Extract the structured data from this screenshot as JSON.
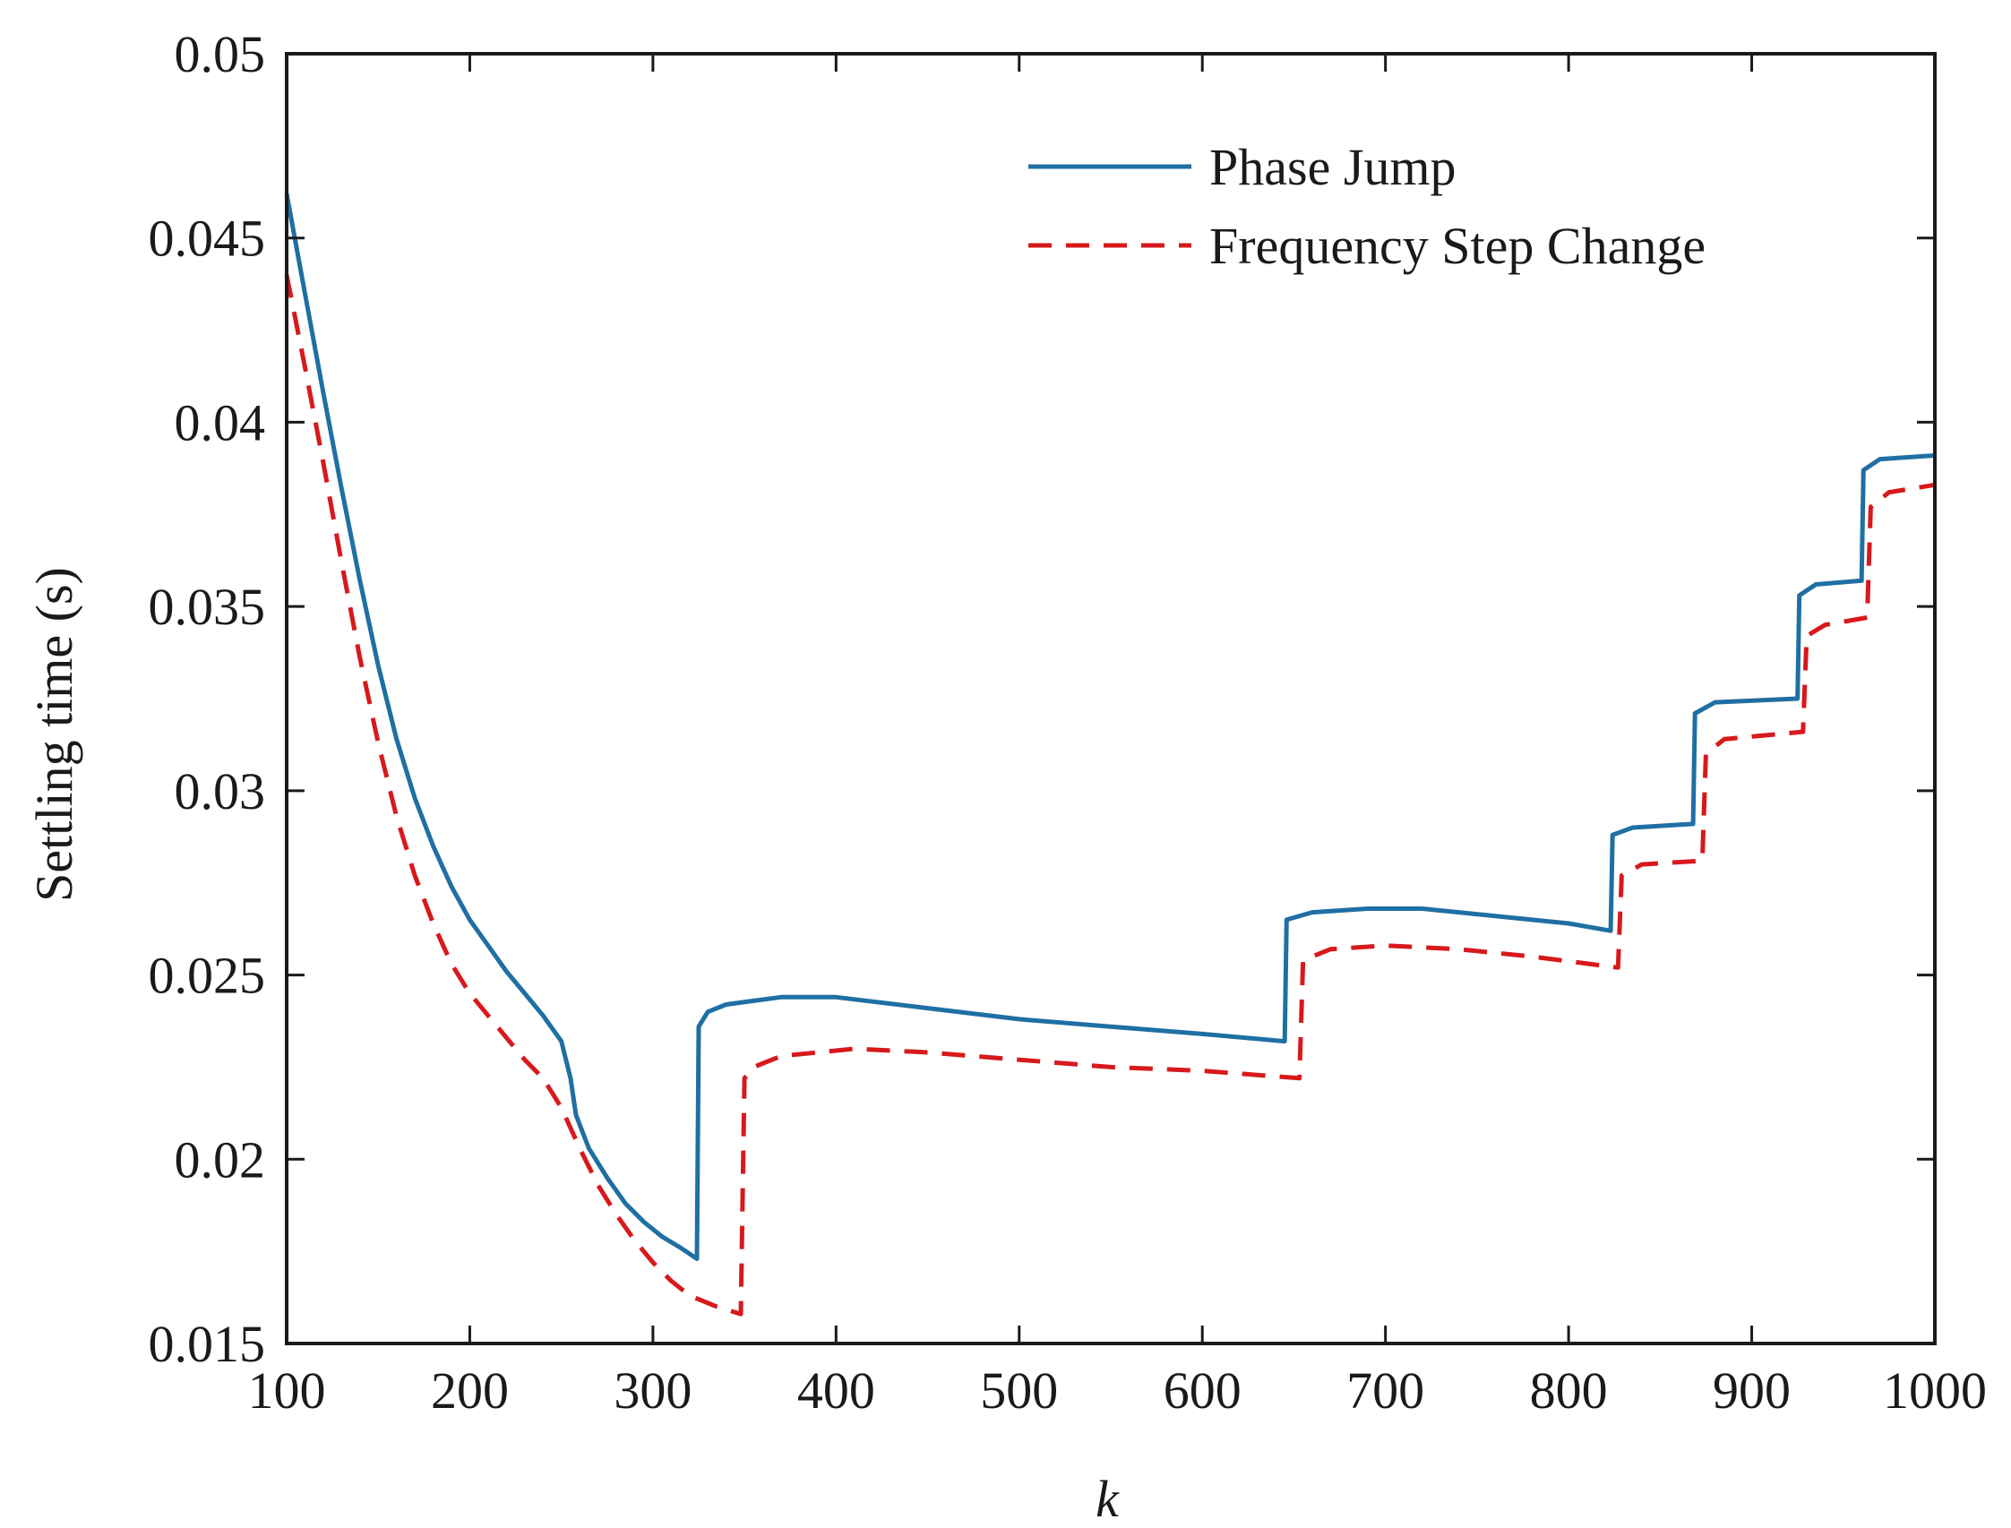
{
  "chart_data": {
    "type": "line",
    "title": "",
    "xlabel": "k",
    "ylabel": "Settling time (s)",
    "xlim": [
      100,
      1000
    ],
    "ylim": [
      0.015,
      0.05
    ],
    "x_ticks": [
      100,
      200,
      300,
      400,
      500,
      600,
      700,
      800,
      900,
      1000
    ],
    "x_tick_labels": [
      "100",
      "200",
      "300",
      "400",
      "500",
      "600",
      "700",
      "800",
      "900",
      "1000"
    ],
    "y_ticks": [
      0.015,
      0.02,
      0.025,
      0.03,
      0.035,
      0.04,
      0.045,
      0.05
    ],
    "y_tick_labels": [
      "0.015",
      "0.02",
      "0.025",
      "0.03",
      "0.035",
      "0.04",
      "0.045",
      "0.05"
    ],
    "grid": false,
    "legend": {
      "position": "top-right"
    },
    "series": [
      {
        "name": "Phase Jump",
        "color": "#1f6fa3",
        "style": "solid",
        "points": [
          [
            100,
            0.0462
          ],
          [
            110,
            0.0435
          ],
          [
            120,
            0.0408
          ],
          [
            130,
            0.0382
          ],
          [
            140,
            0.0357
          ],
          [
            150,
            0.0334
          ],
          [
            160,
            0.0314
          ],
          [
            170,
            0.0298
          ],
          [
            180,
            0.0285
          ],
          [
            190,
            0.0274
          ],
          [
            200,
            0.0265
          ],
          [
            210,
            0.0258
          ],
          [
            220,
            0.0251
          ],
          [
            230,
            0.0245
          ],
          [
            240,
            0.0239
          ],
          [
            250,
            0.0232
          ],
          [
            255,
            0.0222
          ],
          [
            258,
            0.0212
          ],
          [
            265,
            0.0203
          ],
          [
            275,
            0.0195
          ],
          [
            285,
            0.0188
          ],
          [
            295,
            0.0183
          ],
          [
            305,
            0.0179
          ],
          [
            315,
            0.0176
          ],
          [
            324,
            0.0173
          ],
          [
            325,
            0.0236
          ],
          [
            330,
            0.024
          ],
          [
            340,
            0.0242
          ],
          [
            355,
            0.0243
          ],
          [
            370,
            0.0244
          ],
          [
            385,
            0.0244
          ],
          [
            400,
            0.0244
          ],
          [
            450,
            0.0241
          ],
          [
            500,
            0.0238
          ],
          [
            550,
            0.0236
          ],
          [
            600,
            0.0234
          ],
          [
            645,
            0.0232
          ],
          [
            646,
            0.0265
          ],
          [
            660,
            0.0267
          ],
          [
            690,
            0.0268
          ],
          [
            720,
            0.0268
          ],
          [
            760,
            0.0266
          ],
          [
            800,
            0.0264
          ],
          [
            823,
            0.0262
          ],
          [
            824,
            0.0288
          ],
          [
            835,
            0.029
          ],
          [
            868,
            0.0291
          ],
          [
            869,
            0.0321
          ],
          [
            880,
            0.0324
          ],
          [
            925,
            0.0325
          ],
          [
            926,
            0.0353
          ],
          [
            935,
            0.0356
          ],
          [
            960,
            0.0357
          ],
          [
            961,
            0.0387
          ],
          [
            970,
            0.039
          ],
          [
            1000,
            0.0391
          ]
        ]
      },
      {
        "name": "Frequency Step Change",
        "color": "#d7191c",
        "style": "dashed",
        "points": [
          [
            100,
            0.044
          ],
          [
            110,
            0.0415
          ],
          [
            120,
            0.0389
          ],
          [
            130,
            0.0362
          ],
          [
            140,
            0.0336
          ],
          [
            150,
            0.0313
          ],
          [
            160,
            0.0293
          ],
          [
            170,
            0.0277
          ],
          [
            180,
            0.0264
          ],
          [
            190,
            0.0253
          ],
          [
            200,
            0.0245
          ],
          [
            210,
            0.0239
          ],
          [
            220,
            0.0233
          ],
          [
            230,
            0.0227
          ],
          [
            240,
            0.0222
          ],
          [
            250,
            0.0214
          ],
          [
            260,
            0.0203
          ],
          [
            270,
            0.0193
          ],
          [
            280,
            0.0185
          ],
          [
            290,
            0.0178
          ],
          [
            300,
            0.0172
          ],
          [
            310,
            0.0167
          ],
          [
            320,
            0.0163
          ],
          [
            335,
            0.016
          ],
          [
            348,
            0.0158
          ],
          [
            350,
            0.0222
          ],
          [
            355,
            0.0225
          ],
          [
            370,
            0.0228
          ],
          [
            390,
            0.0229
          ],
          [
            410,
            0.023
          ],
          [
            450,
            0.0229
          ],
          [
            500,
            0.0227
          ],
          [
            550,
            0.0225
          ],
          [
            600,
            0.0224
          ],
          [
            653,
            0.0222
          ],
          [
            655,
            0.0254
          ],
          [
            670,
            0.0257
          ],
          [
            700,
            0.0258
          ],
          [
            740,
            0.0257
          ],
          [
            780,
            0.0255
          ],
          [
            827,
            0.0252
          ],
          [
            829,
            0.0277
          ],
          [
            840,
            0.028
          ],
          [
            873,
            0.0281
          ],
          [
            875,
            0.031
          ],
          [
            885,
            0.0314
          ],
          [
            928,
            0.0316
          ],
          [
            930,
            0.0342
          ],
          [
            940,
            0.0345
          ],
          [
            963,
            0.0347
          ],
          [
            965,
            0.0377
          ],
          [
            975,
            0.0381
          ],
          [
            1000,
            0.0383
          ]
        ]
      }
    ]
  }
}
